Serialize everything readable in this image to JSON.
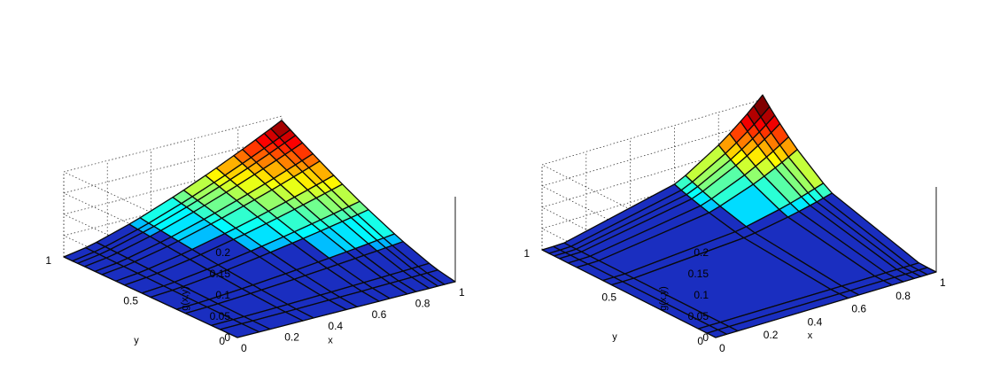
{
  "chart_data": [
    {
      "type": "surface",
      "title": "",
      "xlabel": "x",
      "ylabel": "y",
      "zlabel": "g(x,y)",
      "xlim": [
        0,
        1
      ],
      "ylim": [
        0,
        1
      ],
      "zlim": [
        0,
        0.2
      ],
      "xticks": [
        "0",
        "0.2",
        "0.4",
        "0.6",
        "0.8",
        "1"
      ],
      "yticks": [
        "0",
        "0.5",
        "1"
      ],
      "zticks": [
        "0",
        "0.05",
        "0.1",
        "0.15",
        "0.2"
      ],
      "grid": true,
      "peak": {
        "x": 1,
        "y": 1,
        "z": 0.19
      },
      "colormap": "jet",
      "surface_color": "#1a2ec0",
      "edge_color": "#0a0a0a",
      "x_breaks": [
        0,
        0.1,
        0.15,
        0.3,
        0.35,
        0.5,
        0.55,
        0.65,
        0.7,
        0.78,
        0.82,
        0.88,
        0.92,
        0.95,
        1.0
      ],
      "y_breaks": [
        0,
        0.1,
        0.15,
        0.3,
        0.35,
        0.5,
        0.55,
        0.65,
        0.7,
        0.78,
        0.82,
        0.88,
        0.92,
        0.95,
        1.0
      ]
    },
    {
      "type": "surface",
      "title": "",
      "xlabel": "x",
      "ylabel": "y",
      "zlabel": "g(x,y)",
      "xlim": [
        0,
        1
      ],
      "ylim": [
        0,
        1
      ],
      "zlim": [
        0,
        0.2
      ],
      "xticks": [
        "0",
        "0.2",
        "0.4",
        "0.6",
        "0.8",
        "1"
      ],
      "yticks": [
        "0",
        "0.5",
        "1"
      ],
      "zticks": [
        "0",
        "0.05",
        "0.1",
        "0.15",
        "0.2"
      ],
      "grid": true,
      "peak": {
        "x": 1,
        "y": 1,
        "z": 0.21
      },
      "colormap": "jet",
      "surface_color": "#1a2ec0",
      "edge_color": "#0a0a0a",
      "x_breaks": [
        0,
        0.05,
        0.1,
        0.6,
        0.65,
        0.8,
        0.85,
        0.9,
        0.93,
        0.96,
        1.0
      ],
      "y_breaks": [
        0,
        0.05,
        0.1,
        0.6,
        0.65,
        0.8,
        0.85,
        0.9,
        0.93,
        0.96,
        1.0
      ]
    }
  ]
}
